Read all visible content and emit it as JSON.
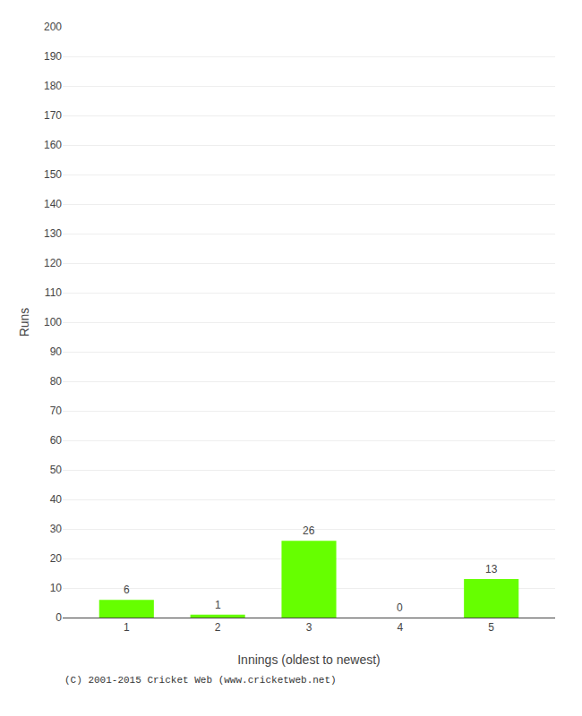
{
  "chart_data": {
    "type": "bar",
    "categories": [
      1,
      2,
      3,
      4,
      5
    ],
    "values": [
      6,
      1,
      26,
      0,
      13
    ],
    "color": "#66ff00",
    "xlabel": "Innings (oldest to newest)",
    "ylabel": "Runs",
    "ylim": [
      0,
      200
    ],
    "yticks": [
      0,
      10,
      20,
      30,
      40,
      50,
      60,
      70,
      80,
      90,
      100,
      110,
      120,
      130,
      140,
      150,
      160,
      170,
      180,
      190,
      200
    ],
    "grid": true,
    "data_labels": true,
    "annotations": [
      "(C) 2001-2015 Cricket Web (www.cricketweb.net)"
    ]
  }
}
